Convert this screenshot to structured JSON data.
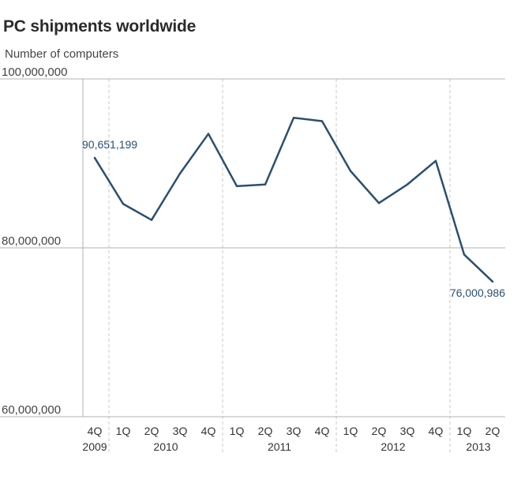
{
  "title": "PC shipments worldwide",
  "subtitle": "Number of computers",
  "chart_data": {
    "type": "line",
    "title": "PC shipments worldwide",
    "ylabel": "Number of computers",
    "xlabel": "",
    "ylim": [
      60000000,
      100000000
    ],
    "yticks": [
      {
        "value": 100000000,
        "label": "100,000,000"
      },
      {
        "value": 80000000,
        "label": "80,000,000"
      },
      {
        "value": 60000000,
        "label": "60,000,000"
      }
    ],
    "categories": [
      "4Q",
      "1Q",
      "2Q",
      "3Q",
      "4Q",
      "1Q",
      "2Q",
      "3Q",
      "4Q",
      "1Q",
      "2Q",
      "3Q",
      "4Q",
      "1Q",
      "2Q"
    ],
    "years": [
      {
        "label": "2009",
        "start": 0,
        "end": 0
      },
      {
        "label": "2010",
        "start": 1,
        "end": 4
      },
      {
        "label": "2011",
        "start": 5,
        "end": 8
      },
      {
        "label": "2012",
        "start": 9,
        "end": 12
      },
      {
        "label": "2013",
        "start": 13,
        "end": 14
      }
    ],
    "year_boundaries": [
      0.5,
      4.5,
      8.5,
      12.5
    ],
    "series": [
      {
        "values": [
          90651199,
          85200000,
          83300000,
          88800000,
          93500000,
          87300000,
          87500000,
          95400000,
          95000000,
          89100000,
          85300000,
          87500000,
          90300000,
          79200000,
          76000986
        ],
        "color": "#2e4f6b"
      }
    ],
    "annotations": [
      {
        "index": 0,
        "text": "90,651,199"
      },
      {
        "index": 14,
        "text": "76,000,986"
      }
    ],
    "grid": "horizontal solid at ticks, vertical dashed at year boundaries"
  }
}
